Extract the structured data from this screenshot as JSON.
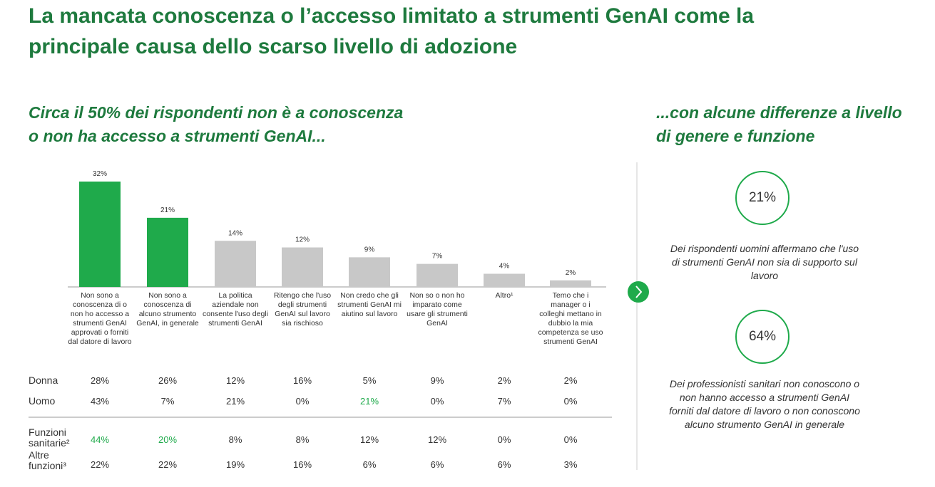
{
  "title": [
    "La mancata conoscenza o l’accesso limitato a strumenti GenAI come la",
    "principale causa dello scarso livello di adozione"
  ],
  "left_heading": [
    "Circa il 50% dei rispondenti non è a conoscenza",
    "o non ha accesso a strumenti GenAI..."
  ],
  "right_heading": [
    "...con alcune differenze a livello",
    "di genere e funzione"
  ],
  "chart_data": {
    "type": "bar",
    "categories": [
      "Non sono a conoscenza di o non ho accesso a strumenti GenAI approvati o forniti dal datore di lavoro",
      "Non sono a conoscenza di alcuno strumento GenAI, in generale",
      "La politica aziendale non consente l'uso degli strumenti GenAI",
      "Ritengo che l'uso degli strumenti GenAI sul lavoro sia rischioso",
      "Non credo che gli strumenti GenAI mi aiutino sul lavoro",
      "Non so o non ho imparato come usare gli strumenti GenAI",
      "Altro¹",
      "Temo che i manager o i colleghi mettano in dubbio la mia competenza se uso strumenti GenAI"
    ],
    "values": [
      32,
      21,
      14,
      12,
      9,
      7,
      4,
      2
    ],
    "value_labels": [
      "32%",
      "21%",
      "14%",
      "12%",
      "9%",
      "7%",
      "4%",
      "2%"
    ],
    "colors": [
      "#1faa4b",
      "#1faa4b",
      "#c8c8c8",
      "#c8c8c8",
      "#c8c8c8",
      "#c8c8c8",
      "#c8c8c8",
      "#c8c8c8"
    ]
  },
  "table": {
    "rows": [
      {
        "label": "Donna",
        "cells": [
          "28%",
          "26%",
          "12%",
          "16%",
          "5%",
          "9%",
          "2%",
          "2%"
        ]
      },
      {
        "label": "Uomo",
        "cells": [
          "43%",
          "7%",
          "21%",
          "0%",
          "21%",
          "0%",
          "7%",
          "0%"
        ]
      },
      {
        "label": "Funzioni sanitarie²",
        "cells": [
          "44%",
          "20%",
          "8%",
          "8%",
          "12%",
          "12%",
          "0%",
          "0%"
        ]
      },
      {
        "label": "Altre funzioni³",
        "cells": [
          "22%",
          "22%",
          "19%",
          "16%",
          "6%",
          "6%",
          "6%",
          "3%"
        ]
      }
    ]
  },
  "stats": [
    {
      "value": "21%",
      "text": "Dei rispondenti uomini affermano che l'uso di strumenti GenAI non sia di supporto sul lavoro"
    },
    {
      "value": "64%",
      "text": "Dei professionisti sanitari non conoscono o non hanno accesso a strumenti GenAI forniti dal datore di lavoro o non conoscono alcuno strumento GenAI in generale"
    }
  ]
}
